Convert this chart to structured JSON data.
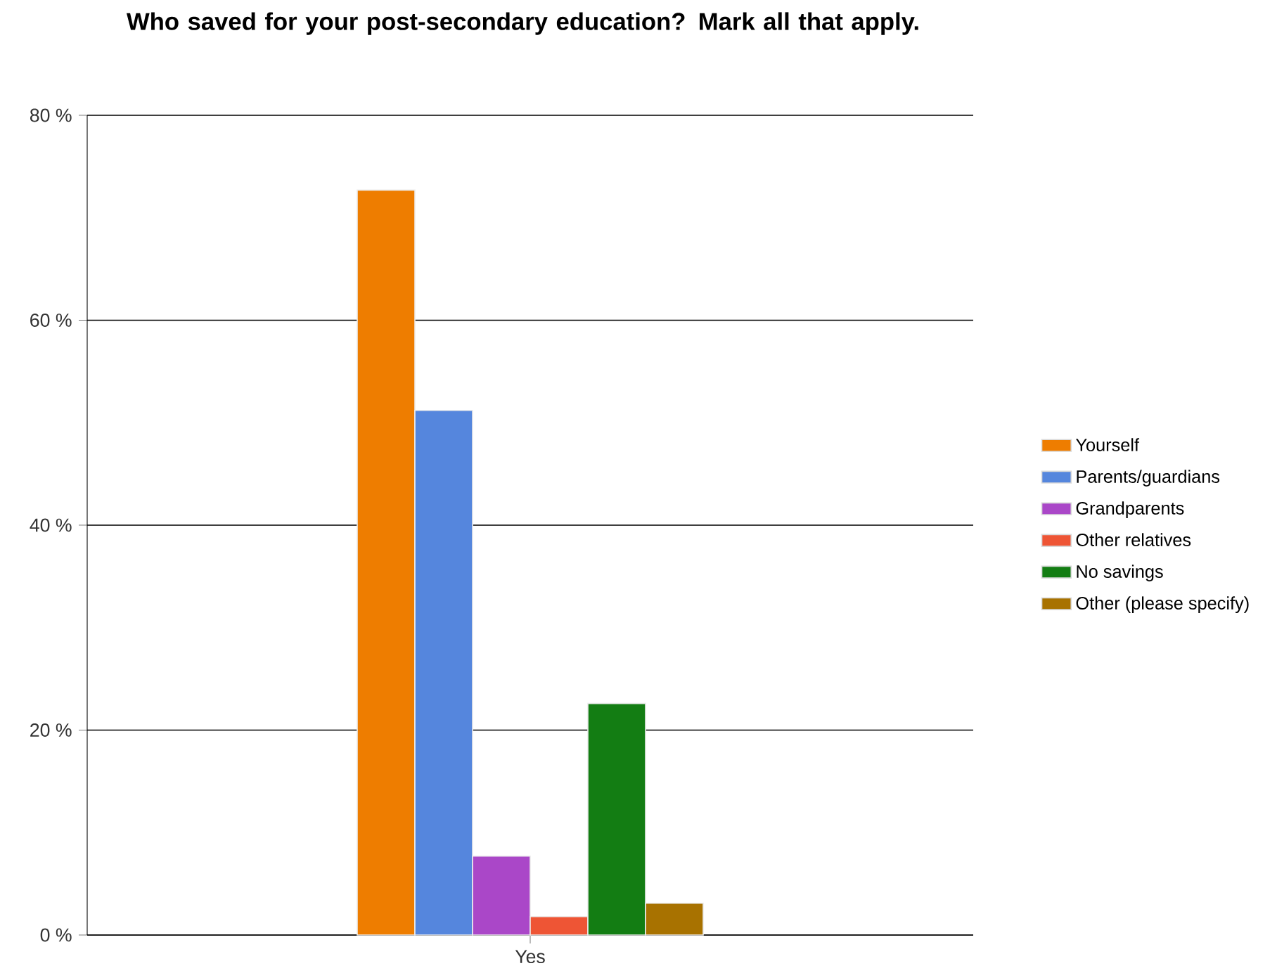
{
  "chart_data": {
    "type": "bar",
    "title": "Who saved for your post-secondary education?  Mark all that apply.",
    "categories": [
      "Yes"
    ],
    "series": [
      {
        "name": "Yourself",
        "color": "#ee7d00",
        "values": [
          72.7
        ]
      },
      {
        "name": "Parents/guardians",
        "color": "#5586dd",
        "values": [
          51.2
        ]
      },
      {
        "name": "Grandparents",
        "color": "#aa47c8",
        "values": [
          7.7
        ]
      },
      {
        "name": "Other relatives",
        "color": "#ee5535",
        "values": [
          1.8
        ]
      },
      {
        "name": "No savings",
        "color": "#137d13",
        "values": [
          22.6
        ]
      },
      {
        "name": "Other (please specify)",
        "color": "#a87200",
        "values": [
          3.1
        ]
      }
    ],
    "ylim": [
      0,
      80
    ],
    "yticks": [
      {
        "value": 0,
        "label": "0 %"
      },
      {
        "value": 20,
        "label": "20 %"
      },
      {
        "value": 40,
        "label": "40 %"
      },
      {
        "value": 60,
        "label": "60 %"
      },
      {
        "value": 80,
        "label": "80 %"
      }
    ],
    "grid": "y",
    "legend": "right"
  }
}
